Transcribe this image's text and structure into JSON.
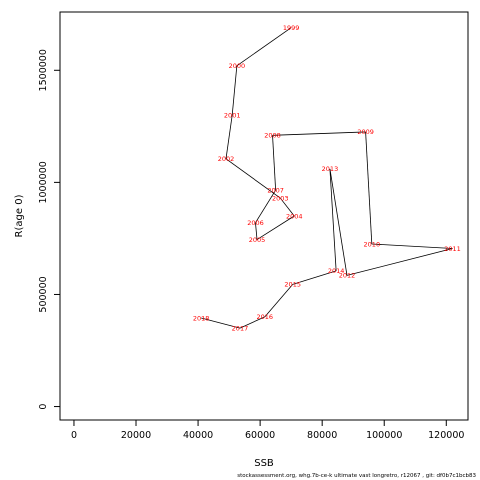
{
  "chart_data": {
    "type": "line",
    "xlabel": "SSB",
    "ylabel": "R(age 0)",
    "xlim": [
      -4500,
      127000
    ],
    "ylim": [
      -60000,
      1760000
    ],
    "x_ticks": [
      0,
      20000,
      40000,
      60000,
      80000,
      100000,
      120000
    ],
    "x_tick_labels": [
      "0",
      "20000",
      "40000",
      "60000",
      "80000",
      "100000",
      "120000"
    ],
    "y_ticks": [
      0,
      500000,
      1000000,
      1500000
    ],
    "y_tick_labels": [
      "0",
      "500000",
      "1000000",
      "1500000"
    ],
    "grid": false,
    "line_color": "#000000",
    "label_color": "#ff0000",
    "points": [
      {
        "year": "1999",
        "ssb": 70000,
        "r": 1690000
      },
      {
        "year": "2000",
        "ssb": 52500,
        "r": 1520000
      },
      {
        "year": "2001",
        "ssb": 51000,
        "r": 1300000
      },
      {
        "year": "2002",
        "ssb": 49000,
        "r": 1105000
      },
      {
        "year": "2003",
        "ssb": 66500,
        "r": 930000
      },
      {
        "year": "2004",
        "ssb": 71000,
        "r": 850000
      },
      {
        "year": "2005",
        "ssb": 59000,
        "r": 745000
      },
      {
        "year": "2006",
        "ssb": 58500,
        "r": 820000
      },
      {
        "year": "2007",
        "ssb": 65000,
        "r": 965000
      },
      {
        "year": "2008",
        "ssb": 64000,
        "r": 1210000
      },
      {
        "year": "2009",
        "ssb": 94000,
        "r": 1225000
      },
      {
        "year": "2010",
        "ssb": 96000,
        "r": 725000
      },
      {
        "year": "2011",
        "ssb": 122000,
        "r": 705000
      },
      {
        "year": "2012",
        "ssb": 88000,
        "r": 585000
      },
      {
        "year": "2013",
        "ssb": 82500,
        "r": 1060000
      },
      {
        "year": "2014",
        "ssb": 84500,
        "r": 605000
      },
      {
        "year": "2015",
        "ssb": 70500,
        "r": 545000
      },
      {
        "year": "2016",
        "ssb": 61500,
        "r": 400000
      },
      {
        "year": "2017",
        "ssb": 53500,
        "r": 350000
      },
      {
        "year": "2018",
        "ssb": 41000,
        "r": 395000
      }
    ]
  },
  "footer_text": "stockassessment.org,  whg.7b-ce-k  ultimate  vast  longretro,  r12067 ,  git:  df0b7c1bcb83"
}
